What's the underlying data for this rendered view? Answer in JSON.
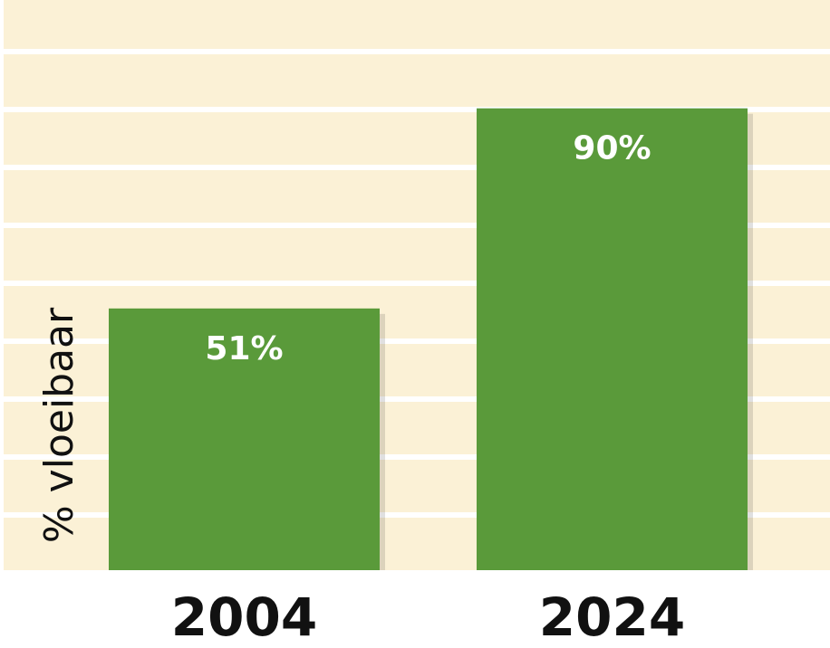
{
  "chart_data": {
    "type": "bar",
    "categories": [
      "2004",
      "2024"
    ],
    "values": [
      51,
      90
    ],
    "data_labels": [
      "51%",
      "90%"
    ],
    "title": "",
    "xlabel": "",
    "ylabel": "% vloeibaar",
    "ylim": [
      0,
      100
    ],
    "grid": true,
    "legend": "none"
  },
  "colors": {
    "background": "#fbf1d6",
    "grid": "#ffffff",
    "bar": "#5a9a3a",
    "bar_label": "#ffffff",
    "axis_text": "#111111"
  }
}
